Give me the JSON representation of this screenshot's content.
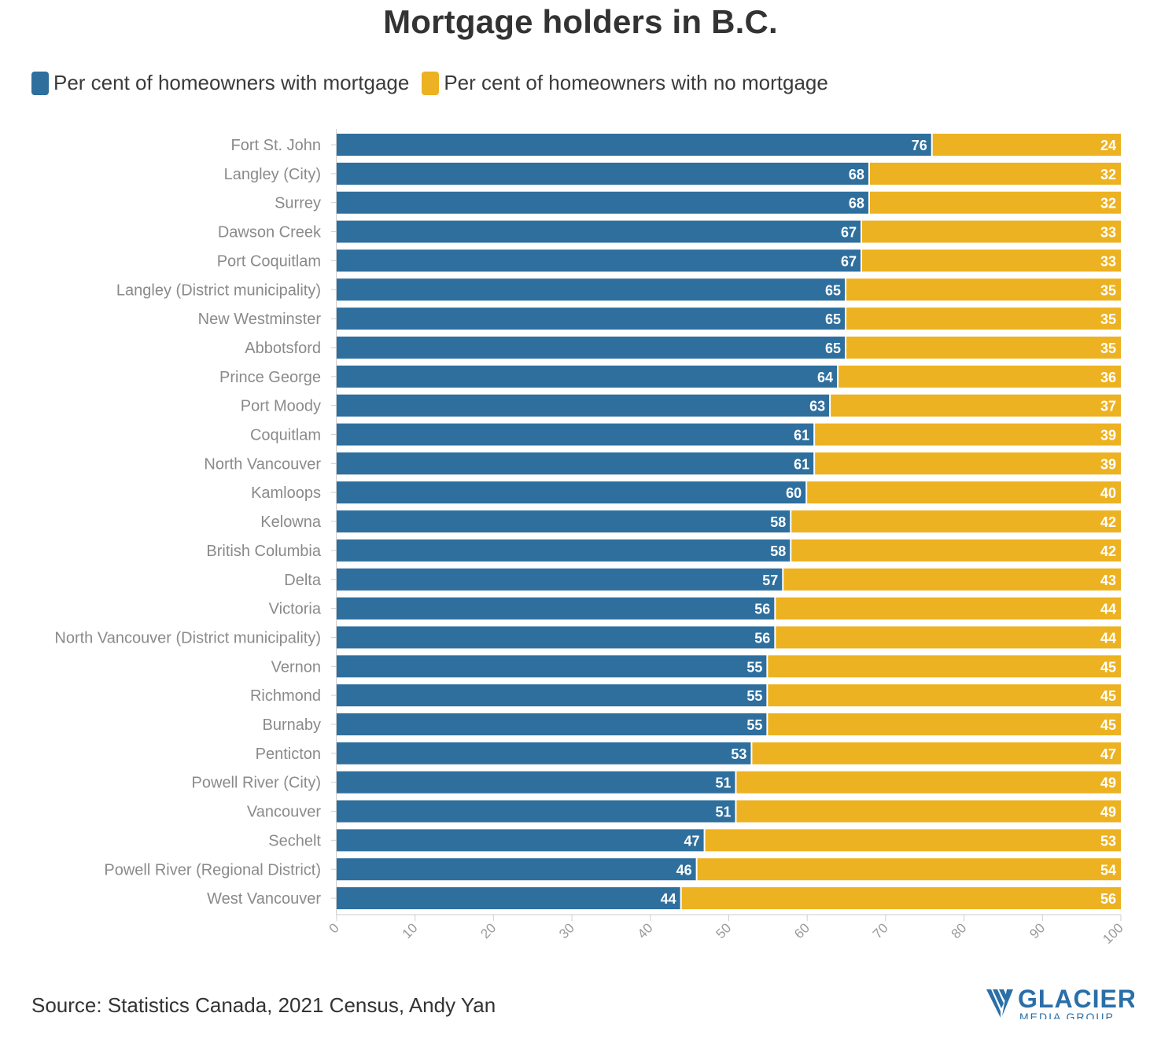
{
  "title": "Mortgage holders in B.C.",
  "legend": [
    {
      "label": "Per cent of homeowners with mortgage",
      "color": "#2e6f9e"
    },
    {
      "label": "Per cent of homeowners with no mortgage",
      "color": "#edb221"
    }
  ],
  "source": "Source: Statistics Canada, 2021 Census, Andy Yan",
  "logo": {
    "name": "GLACIER",
    "subtitle": "MEDIA GROUP"
  },
  "chart_data": {
    "type": "bar",
    "orientation": "horizontal",
    "stacked": true,
    "title": "Mortgage holders in B.C.",
    "xlabel": "",
    "ylabel": "",
    "xlim": [
      0,
      100
    ],
    "xticks": [
      0,
      10,
      20,
      30,
      40,
      50,
      60,
      70,
      80,
      90,
      100
    ],
    "legend_position": "top-left",
    "grid": false,
    "categories": [
      "Fort St. John",
      "Langley (City)",
      "Surrey",
      "Dawson Creek",
      "Port Coquitlam",
      "Langley (District municipality)",
      "New Westminster",
      "Abbotsford",
      "Prince George",
      "Port Moody",
      "Coquitlam",
      "North Vancouver",
      "Kamloops",
      "Kelowna",
      "British Columbia",
      "Delta",
      "Victoria",
      "North Vancouver (District municipality)",
      "Vernon",
      "Richmond",
      "Burnaby",
      "Penticton",
      "Powell River (City)",
      "Vancouver",
      "Sechelt",
      "Powell River (Regional District)",
      "West Vancouver"
    ],
    "series": [
      {
        "name": "Per cent of homeowners with mortgage",
        "color": "#2e6f9e",
        "values": [
          76,
          68,
          68,
          67,
          67,
          65,
          65,
          65,
          64,
          63,
          61,
          61,
          60,
          58,
          58,
          57,
          56,
          56,
          55,
          55,
          55,
          53,
          51,
          51,
          47,
          46,
          44
        ]
      },
      {
        "name": "Per cent of homeowners with no mortgage",
        "color": "#edb221",
        "values": [
          24,
          32,
          32,
          33,
          33,
          35,
          35,
          35,
          36,
          37,
          39,
          39,
          40,
          42,
          42,
          43,
          44,
          44,
          45,
          45,
          45,
          47,
          49,
          49,
          53,
          54,
          56
        ]
      }
    ]
  }
}
